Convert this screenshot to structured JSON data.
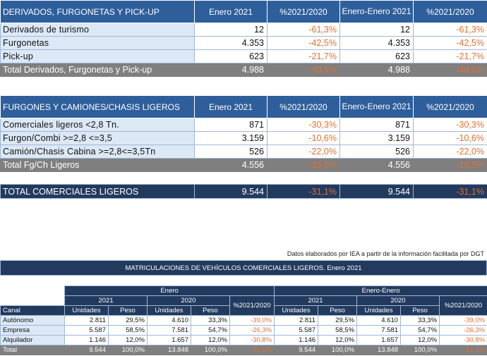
{
  "table1": {
    "headers": [
      "DERIVADOS, FURGONETAS Y PICK-UP",
      "Enero 2021",
      "%2021/2020",
      "Enero-Enero 2021",
      "%2021/2020"
    ],
    "rows": [
      {
        "label": "Derivados de turismo",
        "enero": "12",
        "pct1": "-61,3%",
        "acum": "12",
        "pct2": "-61,3%"
      },
      {
        "label": "Furgonetas",
        "enero": "4.353",
        "pct1": "-42,5%",
        "acum": "4.353",
        "pct2": "-42,5%"
      },
      {
        "label": "Pick-up",
        "enero": "623",
        "pct1": "-21,7%",
        "acum": "623",
        "pct2": "-21,7%"
      }
    ],
    "total": {
      "label": "Total Derivados, Furgonetas y Pick-up",
      "enero": "4.988",
      "pct1": "-40,6%",
      "acum": "4.988",
      "pct2": "-40,6%"
    }
  },
  "table2": {
    "headers": [
      "FURGONES Y CAMIONES/CHASIS LIGEROS",
      "Enero 2021",
      "%2021/2020",
      "Enero-Enero 2021",
      "%2021/2020"
    ],
    "rows": [
      {
        "label": "Comerciales ligeros <2,8 Tn.",
        "enero": "871",
        "pct1": "-30,3%",
        "acum": "871",
        "pct2": "-30,3%"
      },
      {
        "label": "Furgon/Combi >=2,8 <=3,5",
        "enero": "3.159",
        "pct1": "-10,6%",
        "acum": "3.159",
        "pct2": "-10,6%"
      },
      {
        "label": "Camión/Chasis Cabina >=2,8<=3,5Tn",
        "enero": "526",
        "pct1": "-22,0%",
        "acum": "526",
        "pct2": "-22,0%"
      }
    ],
    "total": {
      "label": "Total Fg/Ch Ligeros",
      "enero": "4.556",
      "pct1": "-16,5%",
      "acum": "4.556",
      "pct2": "-16,5%"
    }
  },
  "table3": {
    "label": "TOTAL COMERCIALES LIGEROS",
    "enero": "9.544",
    "pct1": "-31,1%",
    "acum": "9.544",
    "pct2": "-31,1%"
  },
  "source": "Datos elaborados por IEA a partir de la información facilitada por DGT",
  "banner": "MATRICULACIONES DE VEHÍCULOS COMERCIALES LIGEROS. Enero 2021",
  "table4": {
    "group1": "Enero",
    "group2": "Enero-Enero",
    "y2021": "2021",
    "y2020": "2020",
    "pct": "%2021/2020",
    "canal": "Canal",
    "unidades": "Unidades",
    "peso": "Peso",
    "rows": [
      {
        "label": "Autónomo",
        "u21": "2.811",
        "p21": "29,5%",
        "u20": "4.610",
        "p20": "33,3%",
        "pct": "-39,0%",
        "au21": "2.811",
        "ap21": "29,5%",
        "au20": "4.610",
        "ap20": "33,3%",
        "apct": "-39,0%"
      },
      {
        "label": "Empresa",
        "u21": "5.587",
        "p21": "58,5%",
        "u20": "7.581",
        "p20": "54,7%",
        "pct": "-26,3%",
        "au21": "5.587",
        "ap21": "58,5%",
        "au20": "7.581",
        "ap20": "54,7%",
        "apct": "-26,3%"
      },
      {
        "label": "Alquilador",
        "u21": "1.146",
        "p21": "12,0%",
        "u20": "1.657",
        "p20": "12,0%",
        "pct": "-30,8%",
        "au21": "1.146",
        "ap21": "12,0%",
        "au20": "1.657",
        "ap20": "12,0%",
        "apct": "-30,8%"
      }
    ],
    "total": {
      "label": "Total",
      "u21": "9.544",
      "p21": "100,0%",
      "u20": "13.848",
      "p20": "100,0%",
      "pct": "-31,1%",
      "au21": "9.544",
      "ap21": "100,0%",
      "au20": "13.848",
      "ap20": "100,0%",
      "apct": "-31,1%"
    }
  }
}
